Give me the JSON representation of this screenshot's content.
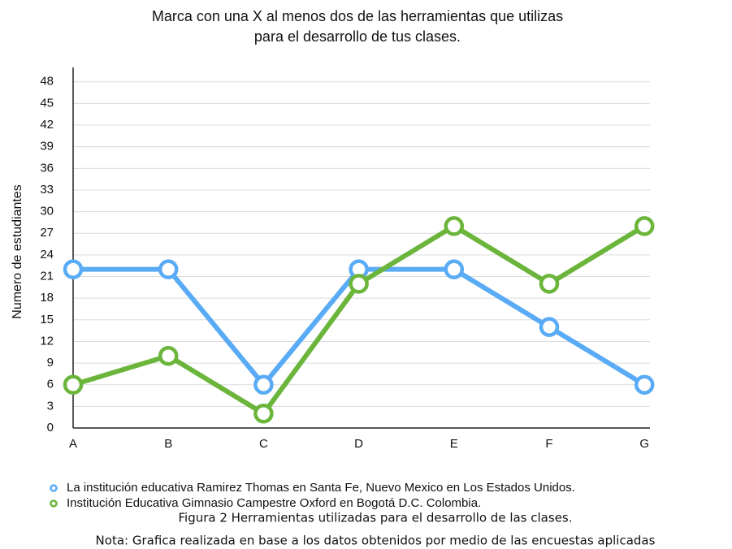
{
  "chart_data": {
    "type": "line",
    "title": [
      "Marca con una X al menos dos de las herramientas que utilizas",
      "para el desarrollo de tus clases."
    ],
    "ylabel": "Numero de estudiantes",
    "categories": [
      "A",
      "B",
      "C",
      "D",
      "E",
      "F",
      "G"
    ],
    "series": [
      {
        "name": "La institución educativa Ramirez Thomas en Santa Fe, Nuevo Mexico en Los Estados Unidos.",
        "color": "#5aabf5",
        "values": [
          22,
          22,
          6,
          22,
          22,
          14,
          6
        ]
      },
      {
        "name": "Institución Educativa Gimnasio Campestre Oxford en Bogotá D.C. Colombia.",
        "color": "#6ab53a",
        "values": [
          6,
          10,
          2,
          20,
          28,
          20,
          28
        ]
      }
    ],
    "ylim": [
      0,
      50
    ],
    "yticks": [
      0,
      3,
      6,
      9,
      12,
      15,
      18,
      21,
      24,
      27,
      30,
      33,
      36,
      39,
      42,
      45,
      48
    ],
    "grid": true,
    "legend": "bottom"
  },
  "caption": "Figura 2 Herramientas utilizadas para el desarrollo de las clases.",
  "note": "Nota: Grafica realizada en base a los datos obtenidos por medio de las encuestas aplicadas"
}
